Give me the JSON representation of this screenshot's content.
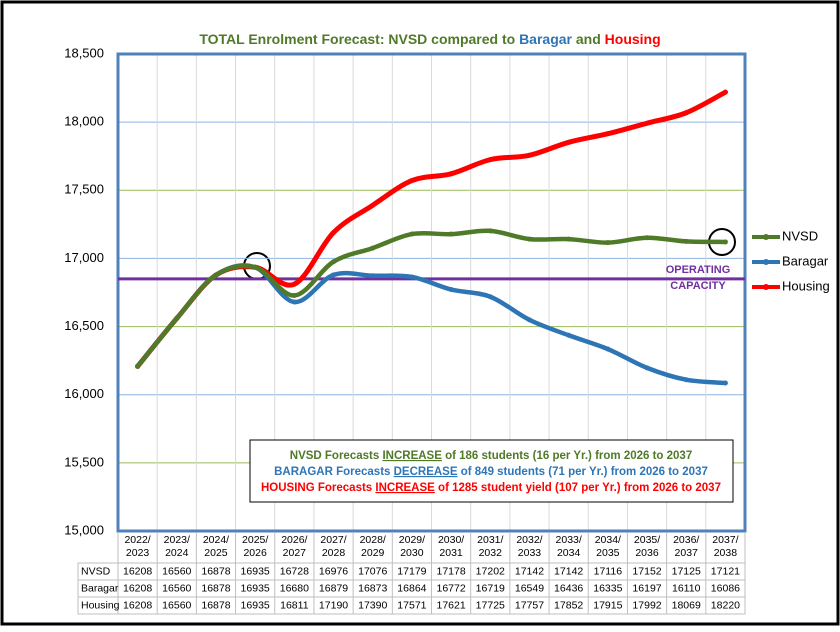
{
  "chart_data": {
    "type": "line",
    "title": [
      {
        "text": "TOTAL Enrolment Forecast: NVSD compared to ",
        "color": "#4f7a28"
      },
      {
        "text": "Baragar",
        "color": "#2e75b6"
      },
      {
        "text": " and ",
        "color": "#4f7a28"
      },
      {
        "text": "Housing",
        "color": "#ff0000"
      }
    ],
    "categories": [
      "2022/2023",
      "2023/2024",
      "2024/2025",
      "2025/2026",
      "2026/2027",
      "2027/2028",
      "2028/2029",
      "2029/2030",
      "2030/2031",
      "2031/2032",
      "2032/2033",
      "2033/2034",
      "2034/2035",
      "2035/2036",
      "2036/2037",
      "2037/2038"
    ],
    "series": [
      {
        "name": "NVSD",
        "color": "#4f7a28",
        "values": [
          16208,
          16560,
          16878,
          16935,
          16728,
          16976,
          17076,
          17179,
          17178,
          17202,
          17142,
          17142,
          17116,
          17152,
          17125,
          17121
        ]
      },
      {
        "name": "Baragar",
        "color": "#2e75b6",
        "values": [
          16208,
          16560,
          16878,
          16935,
          16680,
          16879,
          16873,
          16864,
          16772,
          16719,
          16549,
          16436,
          16335,
          16197,
          16110,
          16086
        ]
      },
      {
        "name": "Housing",
        "color": "#ff0000",
        "values": [
          16208,
          16560,
          16878,
          16935,
          16811,
          17190,
          17390,
          17571,
          17621,
          17725,
          17757,
          17852,
          17915,
          17992,
          18069,
          18220
        ]
      }
    ],
    "ylim": [
      15000,
      18500
    ],
    "yticks": [
      {
        "value": 15000,
        "label": "15,000"
      },
      {
        "value": 15500,
        "label": "15,500"
      },
      {
        "value": 16000,
        "label": "16,000"
      },
      {
        "value": 16500,
        "label": "16,500"
      },
      {
        "value": 17000,
        "label": "17,000"
      },
      {
        "value": 17500,
        "label": "17,500"
      },
      {
        "value": 18000,
        "label": "18,000"
      },
      {
        "value": 18500,
        "label": "18,500"
      }
    ],
    "grid": true,
    "capacity": {
      "value": 16850,
      "label": [
        "OPERATING",
        "CAPACITY"
      ],
      "color": "#7030a0"
    },
    "notes": [
      {
        "color": "#4f7a28",
        "parts": [
          "NVSD Forecasts ",
          "INCREASE",
          " of 186 students (16 per Yr.) from 2026 to 2037"
        ]
      },
      {
        "color": "#2e75b6",
        "parts": [
          "BARAGAR Forecasts ",
          "DECREASE",
          " of 849 students (71 per Yr.) from 2026 to 2037"
        ]
      },
      {
        "color": "#ff0000",
        "parts": [
          "HOUSING Forecasts ",
          "INCREASE",
          " of 1285 student yield (107 per Yr.) from 2026 to 2037"
        ]
      }
    ]
  }
}
